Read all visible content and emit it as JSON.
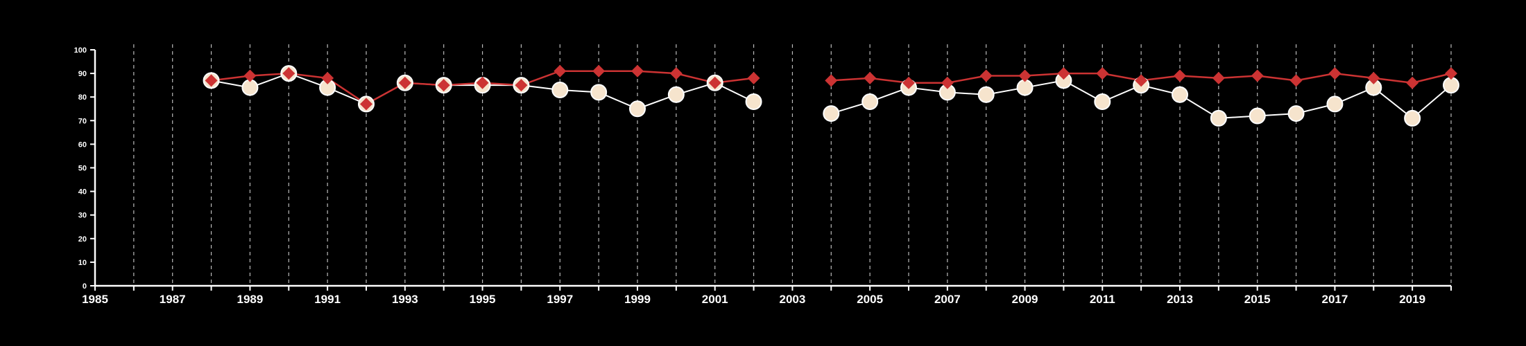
{
  "chart_data": {
    "type": "line",
    "title": "",
    "xlabel": "",
    "ylabel": "",
    "xlim": [
      1985,
      2020
    ],
    "ylim": [
      0,
      100
    ],
    "x_ticks": [
      1985,
      1987,
      1989,
      1991,
      1993,
      1995,
      1997,
      1999,
      2001,
      2003,
      2005,
      2007,
      2009,
      2011,
      2013,
      2015,
      2017,
      2019
    ],
    "y_ticks": [
      0,
      10,
      20,
      30,
      40,
      50,
      60,
      70,
      80,
      90,
      100
    ],
    "grid": {
      "vertical_dashed_per_year": true
    },
    "legend": "none",
    "colors": {
      "background": "#000000",
      "axis": "#ffffff",
      "grid": "#bbbbbb",
      "series_circle_line": "#ffffff",
      "series_circle_fill": "#f6e4cd",
      "series_diamond": "#cc3333"
    },
    "series": [
      {
        "marker": "circle",
        "points": [
          [
            1988,
            87
          ],
          [
            1989,
            84
          ],
          [
            1990,
            90
          ],
          [
            1991,
            84
          ],
          [
            1992,
            77
          ],
          [
            1993,
            86
          ],
          [
            1994,
            85
          ],
          [
            1995,
            85
          ],
          [
            1996,
            85
          ],
          [
            1997,
            83
          ],
          [
            1998,
            82
          ],
          [
            1999,
            75
          ],
          [
            2000,
            81
          ],
          [
            2001,
            86
          ],
          [
            2002,
            78
          ],
          [
            2004,
            73
          ],
          [
            2005,
            78
          ],
          [
            2006,
            84
          ],
          [
            2007,
            82
          ],
          [
            2008,
            81
          ],
          [
            2009,
            84
          ],
          [
            2010,
            87
          ],
          [
            2011,
            78
          ],
          [
            2012,
            85
          ],
          [
            2013,
            81
          ],
          [
            2014,
            71
          ],
          [
            2015,
            72
          ],
          [
            2016,
            73
          ],
          [
            2017,
            77
          ],
          [
            2018,
            84
          ],
          [
            2019,
            71
          ],
          [
            2020,
            85
          ]
        ]
      },
      {
        "marker": "diamond",
        "points": [
          [
            1988,
            87
          ],
          [
            1989,
            89
          ],
          [
            1990,
            90
          ],
          [
            1991,
            88
          ],
          [
            1992,
            77
          ],
          [
            1993,
            86
          ],
          [
            1994,
            85
          ],
          [
            1995,
            86
          ],
          [
            1996,
            85
          ],
          [
            1997,
            91
          ],
          [
            1998,
            91
          ],
          [
            1999,
            91
          ],
          [
            2000,
            90
          ],
          [
            2001,
            86
          ],
          [
            2002,
            88
          ],
          [
            2004,
            87
          ],
          [
            2005,
            88
          ],
          [
            2006,
            86
          ],
          [
            2007,
            86
          ],
          [
            2008,
            89
          ],
          [
            2009,
            89
          ],
          [
            2010,
            90
          ],
          [
            2011,
            90
          ],
          [
            2012,
            87
          ],
          [
            2013,
            89
          ],
          [
            2014,
            88
          ],
          [
            2015,
            89
          ],
          [
            2016,
            87
          ],
          [
            2017,
            90
          ],
          [
            2018,
            88
          ],
          [
            2019,
            86
          ],
          [
            2020,
            90
          ]
        ]
      }
    ]
  }
}
